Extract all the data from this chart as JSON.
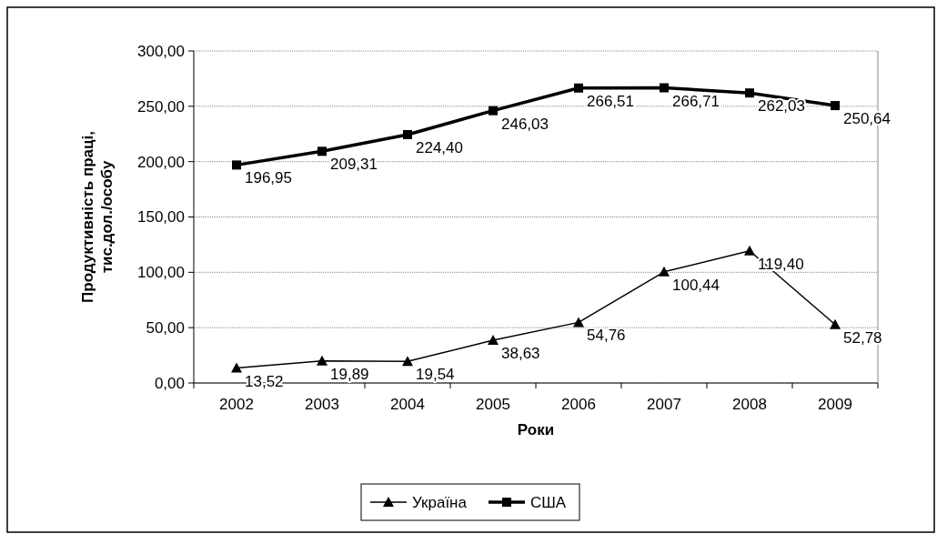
{
  "chart_data": {
    "type": "line",
    "xlabel": "Роки",
    "ylabel": "Продуктивність праці, тис.дол./особу",
    "categories": [
      "2002",
      "2003",
      "2004",
      "2005",
      "2006",
      "2007",
      "2008",
      "2009"
    ],
    "series": [
      {
        "name": "Україна",
        "color": "#000000",
        "marker": "triangle",
        "values": [
          13.52,
          19.89,
          19.54,
          38.63,
          54.76,
          100.44,
          119.4,
          52.78
        ],
        "value_labels": [
          "13,52",
          "19,89",
          "19,54",
          "38,63",
          "54,76",
          "100,44",
          "119,40",
          "52,78"
        ]
      },
      {
        "name": "США",
        "color": "#000000",
        "marker": "square",
        "values": [
          196.95,
          209.31,
          224.4,
          246.03,
          266.51,
          266.71,
          262.03,
          250.64
        ],
        "value_labels": [
          "196,95",
          "209,31",
          "224,40",
          "246,03",
          "266,51",
          "266,71",
          "262,03",
          "250,64"
        ]
      }
    ],
    "ylim": [
      0,
      300
    ],
    "yticks": [
      {
        "value": 0,
        "label": "0,00"
      },
      {
        "value": 50,
        "label": "50,00"
      },
      {
        "value": 100,
        "label": "100,00"
      },
      {
        "value": 150,
        "label": "150,00"
      },
      {
        "value": 200,
        "label": "200,00"
      },
      {
        "value": 250,
        "label": "250,00"
      },
      {
        "value": 300,
        "label": "300,00"
      }
    ],
    "grid": "y",
    "legend": "bottom"
  }
}
